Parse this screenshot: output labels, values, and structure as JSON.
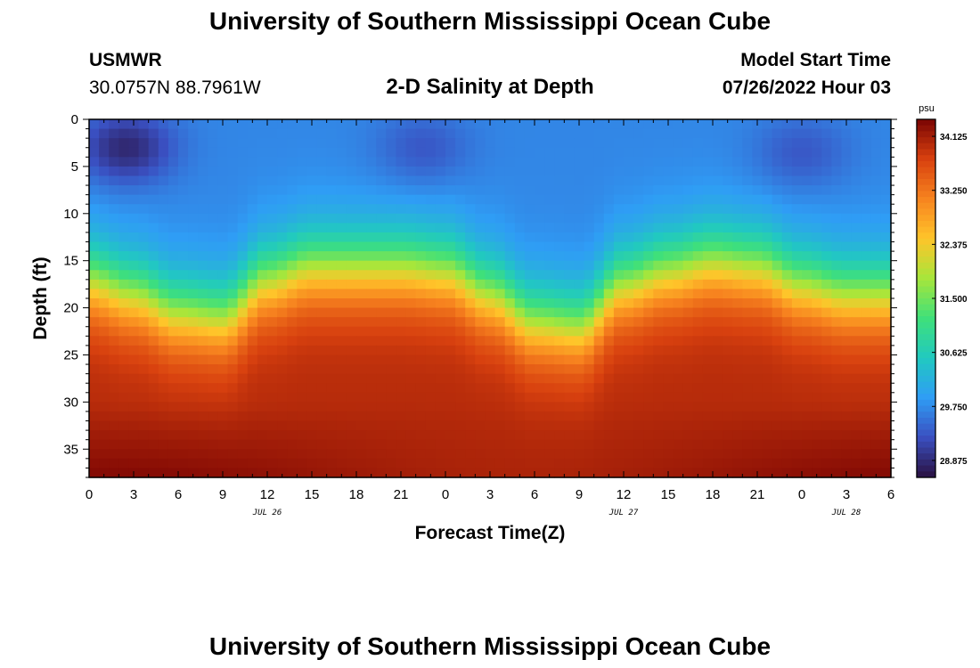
{
  "page": {
    "title": "University of Southern Mississippi Ocean Cube",
    "station_name": "USMWR",
    "station_coords": "30.0757N  88.7961W",
    "plot_heading": "2-D Salinity at Depth",
    "model_label": "Model Start Time",
    "model_time": "07/26/2022 Hour 03",
    "footer_title": "University of Southern Mississippi Ocean Cube"
  },
  "colors": {
    "colormap": [
      "#2a1040",
      "#3a4fc0",
      "#2f9df5",
      "#21c9c0",
      "#3fe07a",
      "#a7e63b",
      "#ffc52a",
      "#f7831f",
      "#d8410f",
      "#7a0403"
    ]
  },
  "chart_data": {
    "type": "heatmap",
    "title": "2-D Salinity at Depth",
    "xlabel": "Forecast Time(Z)",
    "ylabel": "Depth (ft)",
    "units": "psu",
    "x_range_hours": [
      0,
      54
    ],
    "x_tick_labels": [
      "0",
      "3",
      "6",
      "9",
      "12",
      "15",
      "18",
      "21",
      "0",
      "3",
      "6",
      "9",
      "12",
      "15",
      "18",
      "21",
      "0",
      "3",
      "6"
    ],
    "date_labels": [
      {
        "text": "JUL 26",
        "hour": 12
      },
      {
        "text": "JUL 27",
        "hour": 36
      },
      {
        "text": "JUL 28",
        "hour": 51
      }
    ],
    "ylim": [
      0,
      38
    ],
    "y_ticks": [
      0,
      5,
      10,
      15,
      20,
      25,
      30,
      35
    ],
    "colorbar": {
      "range": [
        28.6,
        34.4
      ],
      "ticks": [
        "28.875",
        "29.750",
        "30.625",
        "31.500",
        "32.375",
        "33.250",
        "34.125"
      ]
    },
    "halocline_depth_ft": {
      "hours": [
        0,
        3,
        6,
        9,
        12,
        15,
        18,
        21,
        24,
        27,
        30,
        33,
        36,
        39,
        42,
        45,
        48,
        51,
        54
      ],
      "depth": [
        17,
        18.5,
        20.5,
        21,
        17,
        15.5,
        15.5,
        15.5,
        16,
        18.5,
        21.5,
        22,
        17.5,
        16,
        15,
        15.5,
        17.5,
        18.5,
        18.5
      ]
    },
    "fresh_pockets": [
      {
        "hour": 2.5,
        "depth": 3,
        "salinity": 28.8
      },
      {
        "hour": 22.5,
        "depth": 3,
        "salinity": 29.3
      },
      {
        "hour": 48,
        "depth": 3.5,
        "salinity": 29.3
      }
    ],
    "surface_salinity_psu": 29.7,
    "bottom_salinity_psu": 34.0
  }
}
